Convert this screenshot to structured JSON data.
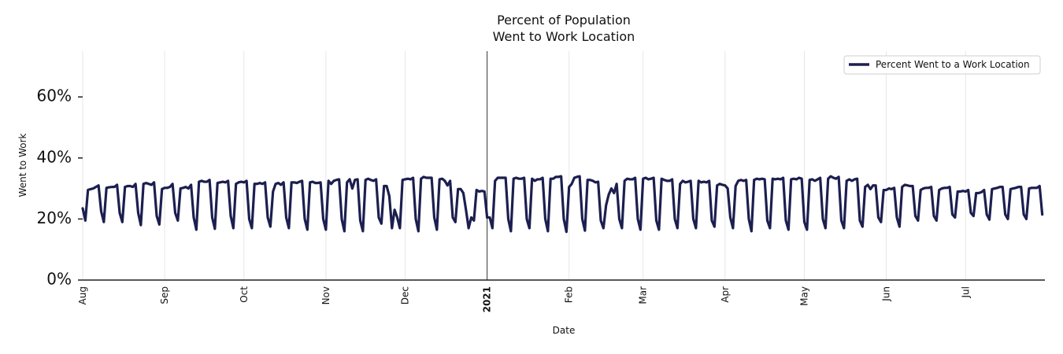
{
  "chart_data": {
    "type": "line",
    "title": [
      "Percent of Population",
      "Went to Work Location"
    ],
    "xlabel": "Date",
    "ylabel": "Went to Work",
    "ylim": [
      0,
      75
    ],
    "yticks": [
      0,
      20,
      40,
      60
    ],
    "ytick_labels": [
      "0%",
      "20%",
      "40%",
      "60%"
    ],
    "x_range": [
      "2020-08-01",
      "2021-07-31"
    ],
    "x_ticks": [
      {
        "date": "2020-08-01",
        "label": "Aug",
        "bold": false
      },
      {
        "date": "2020-09-01",
        "label": "Sep",
        "bold": false
      },
      {
        "date": "2020-10-01",
        "label": "Oct",
        "bold": false
      },
      {
        "date": "2020-11-01",
        "label": "Nov",
        "bold": false
      },
      {
        "date": "2020-12-01",
        "label": "Dec",
        "bold": false
      },
      {
        "date": "2021-01-01",
        "label": "2021",
        "bold": true
      },
      {
        "date": "2021-02-01",
        "label": "Feb",
        "bold": false
      },
      {
        "date": "2021-03-01",
        "label": "Mar",
        "bold": false
      },
      {
        "date": "2021-04-01",
        "label": "Apr",
        "bold": false
      },
      {
        "date": "2021-05-01",
        "label": "May",
        "bold": false
      },
      {
        "date": "2021-06-01",
        "label": "Jun",
        "bold": false
      },
      {
        "date": "2021-07-01",
        "label": "Jul",
        "bold": false
      }
    ],
    "year_marker": "2021-01-01",
    "legend": {
      "location": "upper right",
      "entries": [
        "Percent Went to a Work Location"
      ]
    },
    "series": [
      {
        "name": "Percent Went to a Work Location",
        "color": "#1c1f4f",
        "start_date": "2020-08-01",
        "frequency": "daily",
        "values": [
          23.5,
          19.5,
          29.5,
          29.8,
          30.0,
          30.5,
          31.0,
          22.5,
          19.0,
          30.2,
          30.4,
          30.5,
          30.5,
          31.2,
          22.0,
          19.0,
          30.5,
          30.8,
          30.8,
          30.5,
          31.5,
          22.0,
          18.0,
          31.5,
          31.8,
          31.5,
          31.2,
          32.0,
          21.0,
          18.2,
          29.8,
          30.2,
          30.2,
          30.5,
          31.5,
          22.0,
          19.5,
          30.0,
          30.2,
          30.5,
          30.0,
          31.2,
          20.5,
          16.5,
          32.2,
          32.5,
          32.2,
          32.2,
          32.8,
          20.5,
          16.8,
          31.8,
          32.0,
          32.2,
          32.0,
          32.5,
          21.0,
          17.0,
          31.5,
          32.0,
          32.2,
          32.0,
          32.5,
          20.0,
          17.0,
          31.5,
          31.5,
          31.8,
          31.5,
          32.0,
          20.5,
          17.5,
          29.0,
          31.5,
          31.8,
          31.2,
          32.0,
          20.5,
          17.0,
          32.0,
          32.0,
          31.8,
          32.2,
          32.5,
          20.0,
          16.5,
          32.0,
          32.2,
          31.8,
          31.8,
          32.0,
          20.0,
          16.5,
          32.5,
          31.5,
          32.5,
          32.8,
          33.0,
          20.0,
          16.0,
          32.0,
          33.0,
          30.0,
          32.8,
          33.0,
          19.5,
          16.0,
          32.8,
          33.2,
          32.8,
          32.5,
          33.0,
          20.5,
          18.5,
          30.8,
          30.8,
          27.5,
          17.0,
          23.0,
          20.5,
          17.0,
          32.8,
          33.0,
          33.2,
          33.0,
          33.5,
          20.0,
          16.0,
          33.2,
          33.8,
          33.5,
          33.5,
          33.5,
          20.5,
          16.5,
          33.0,
          33.2,
          32.5,
          31.0,
          32.5,
          20.5,
          19.0,
          29.8,
          29.8,
          28.5,
          23.0,
          17.0,
          20.5,
          19.5,
          29.5,
          29.0,
          29.2,
          29.0,
          20.5,
          20.5,
          17.0,
          32.5,
          33.5,
          33.5,
          33.5,
          33.5,
          20.0,
          16.0,
          33.2,
          33.5,
          33.2,
          33.2,
          33.5,
          20.0,
          17.0,
          33.2,
          32.5,
          33.0,
          33.0,
          33.5,
          20.0,
          16.0,
          33.2,
          33.2,
          33.8,
          33.8,
          34.0,
          20.0,
          15.8,
          30.5,
          31.5,
          33.5,
          33.8,
          34.0,
          20.0,
          16.2,
          32.8,
          32.8,
          32.5,
          32.0,
          32.2,
          19.5,
          17.0,
          24.5,
          28.0,
          30.0,
          28.5,
          31.5,
          20.0,
          17.0,
          32.5,
          33.2,
          33.0,
          33.0,
          33.5,
          20.0,
          16.5,
          33.2,
          33.5,
          33.0,
          33.2,
          33.5,
          19.5,
          16.5,
          33.2,
          32.8,
          32.5,
          32.5,
          33.0,
          20.0,
          17.0,
          31.5,
          32.5,
          32.0,
          32.2,
          32.5,
          20.0,
          17.0,
          32.5,
          32.0,
          32.2,
          32.0,
          32.5,
          19.5,
          17.5,
          31.0,
          31.5,
          31.2,
          31.0,
          30.0,
          20.5,
          17.0,
          30.8,
          32.5,
          32.8,
          32.5,
          32.8,
          20.0,
          16.0,
          32.8,
          33.2,
          33.0,
          33.2,
          33.0,
          19.5,
          17.0,
          33.2,
          33.0,
          33.2,
          33.0,
          33.5,
          19.5,
          16.5,
          33.0,
          33.2,
          33.0,
          33.5,
          33.2,
          19.0,
          16.5,
          32.8,
          33.0,
          32.5,
          33.0,
          33.5,
          20.0,
          17.0,
          33.2,
          34.0,
          33.5,
          33.2,
          33.8,
          19.5,
          17.0,
          32.5,
          33.0,
          32.5,
          33.0,
          33.2,
          19.5,
          17.5,
          30.5,
          31.2,
          29.8,
          31.0,
          31.0,
          20.5,
          19.0,
          29.5,
          29.5,
          30.0,
          29.8,
          30.2,
          20.5,
          17.5,
          30.5,
          31.2,
          31.0,
          30.8,
          30.8,
          21.0,
          19.5,
          29.5,
          30.0,
          30.2,
          30.2,
          30.5,
          21.0,
          19.5,
          29.5,
          30.0,
          30.2,
          30.2,
          30.5,
          21.5,
          20.5,
          29.0,
          29.0,
          29.2,
          29.0,
          29.5,
          22.0,
          21.0,
          28.5,
          28.5,
          28.8,
          29.5,
          21.5,
          19.8,
          29.8,
          30.0,
          30.2,
          30.5,
          30.5,
          21.5,
          20.0,
          29.8,
          30.0,
          30.2,
          30.5,
          30.5,
          21.5,
          20.0,
          30.0,
          30.2,
          30.2,
          30.2,
          30.8,
          21.5
        ]
      }
    ]
  }
}
